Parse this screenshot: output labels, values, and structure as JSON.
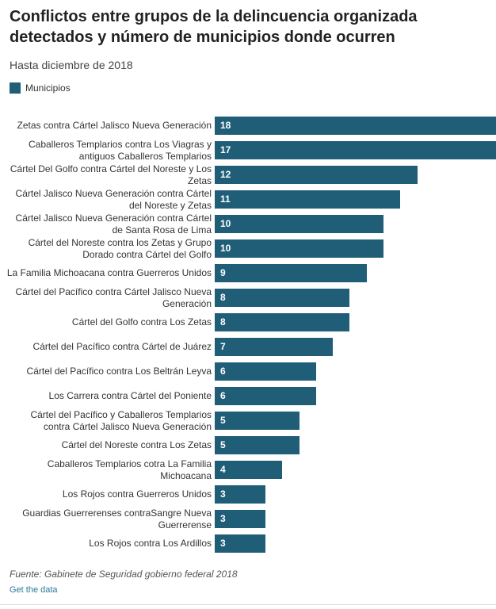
{
  "chart_data": {
    "type": "bar",
    "orientation": "horizontal",
    "title": "Conflictos entre grupos de la delincuencia organizada detectados y número de municipios donde ocurren",
    "subtitle": "Hasta diciembre de 2018",
    "series": [
      {
        "name": "Municipios",
        "color": "#205e78",
        "values": [
          18,
          17,
          12,
          11,
          10,
          10,
          9,
          8,
          8,
          7,
          6,
          6,
          5,
          5,
          4,
          3,
          3,
          3
        ]
      }
    ],
    "categories": [
      "Zetas contra Cártel Jalisco Nueva Generación",
      "Caballeros Templarios contra Los Viagras y antiguos Caballeros Templarios",
      "Cártel Del Golfo contra Cártel del Noreste y Los Zetas",
      "Cártel Jalisco Nueva Generación contra Cártel del Noreste y Zetas",
      "Cártel Jalisco Nueva Generación contra Cártel de Santa Rosa de Lima",
      "Cártel del Noreste contra los Zetas y Grupo Dorado contra Cártel del Golfo",
      "La Familia Michoacana contra Guerreros Unidos",
      "Cártel del Pacífico contra Cártel Jalisco Nueva Generación",
      "Cártel del Golfo contra Los Zetas",
      "Cártel del Pacífico contra Cártel de Juárez",
      "Cártel del Pacífico contra Los Beltrán Leyva",
      "Los Carrera contra Cártel del Poniente",
      "Cártel del Pacífico y Caballeros Templarios contra Cártel Jalisco Nueva Generación",
      "Cártel del Noreste contra Los Zetas",
      "Caballeros Templarios cotra La Familia Michoacana",
      "Los Rojos contra Guerreros Unidos",
      "Guardias Guerrerenses contraSangre Nueva Guerrerense",
      "Los Rojos contra Los Ardillos"
    ],
    "source": "Fuente: Gabinete de Seguridad gobierno federal 2018",
    "link": "Get the data"
  }
}
